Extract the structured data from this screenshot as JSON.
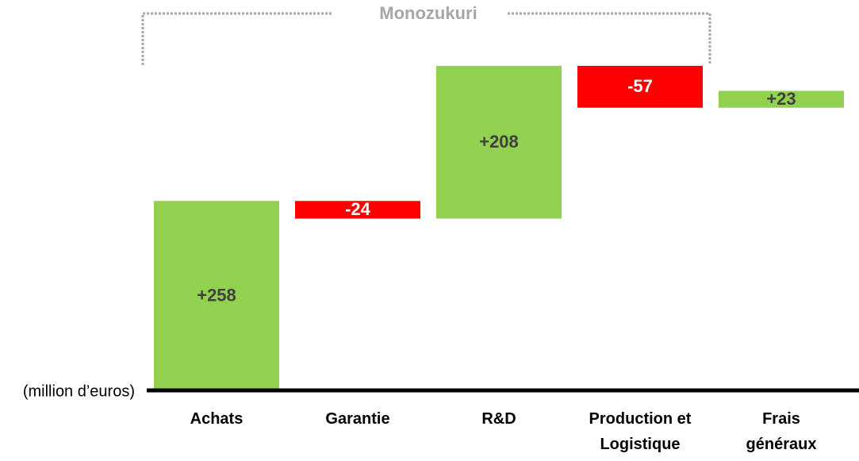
{
  "chart_data": {
    "type": "waterfall",
    "annotation": "Monozukuri",
    "unit_label": "(million d’euros)",
    "categories": [
      "Achats",
      "Garantie",
      "R&D",
      "Production et\nLogistique",
      "Frais\ngénéraux"
    ],
    "values": [
      258,
      -24,
      208,
      -57,
      23
    ],
    "value_labels": [
      "+258",
      "-24",
      "+208",
      "-57",
      "+23"
    ],
    "increase_color": "#92d050",
    "decrease_color": "#ff0000"
  }
}
